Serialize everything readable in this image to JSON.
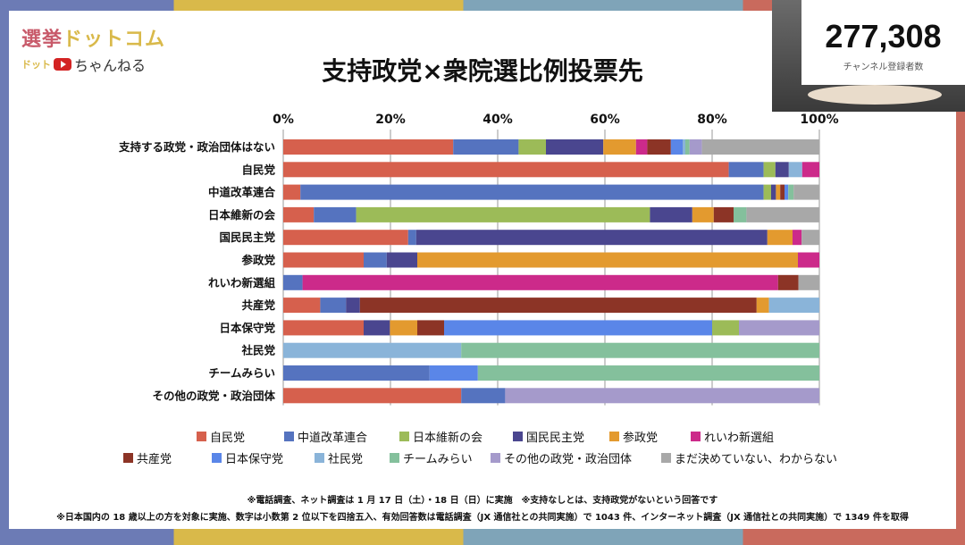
{
  "logo": {
    "line1a": "選挙",
    "line1b": "ドットコム",
    "line2a": "ドット",
    "line2b": "ちゃんねる"
  },
  "subscribers": {
    "count": "277,308",
    "label": "チャンネル登録者数"
  },
  "chart_data": {
    "type": "bar",
    "orientation": "horizontal-stacked-100",
    "title": "支持政党×衆院選比例投票先",
    "xlim": [
      0,
      100
    ],
    "xticks": [
      "0%",
      "20%",
      "40%",
      "60%",
      "80%",
      "100%"
    ],
    "legend_position": "bottom",
    "series": [
      {
        "name": "自民党",
        "color": "#d6604d"
      },
      {
        "name": "中道改革連合",
        "color": "#5573bf"
      },
      {
        "name": "日本維新の会",
        "color": "#9cbb58"
      },
      {
        "name": "国民民主党",
        "color": "#4a468f"
      },
      {
        "name": "参政党",
        "color": "#e39a2f"
      },
      {
        "name": "れいわ新選組",
        "color": "#cc2a8a"
      },
      {
        "name": "共産党",
        "color": "#8c3426"
      },
      {
        "name": "日本保守党",
        "color": "#5a86e8"
      },
      {
        "name": "社民党",
        "color": "#8ab4d9"
      },
      {
        "name": "チームみらい",
        "color": "#84c09c"
      },
      {
        "name": "その他の政党・政治団体",
        "color": "#a59acb"
      },
      {
        "name": "まだ決めていない、わからない",
        "color": "#a8a8a8"
      }
    ],
    "categories": [
      {
        "label": "支持する政党・政治団体はない",
        "segments": [
          [
            0,
            31.7
          ],
          [
            1,
            12.2
          ],
          [
            2,
            5.1
          ],
          [
            3,
            10.7
          ],
          [
            4,
            6.1
          ],
          [
            5,
            2.1
          ],
          [
            6,
            4.4
          ],
          [
            7,
            2.2
          ],
          [
            8,
            0.5
          ],
          [
            9,
            0.8
          ],
          [
            10,
            2.3
          ],
          [
            11,
            21.9
          ]
        ]
      },
      {
        "label": "自民党",
        "segments": [
          [
            0,
            83.1
          ],
          [
            1,
            6.5
          ],
          [
            2,
            2.2
          ],
          [
            3,
            2.5
          ],
          [
            8,
            2.5
          ],
          [
            5,
            3.2
          ]
        ]
      },
      {
        "label": "中道改革連合",
        "segments": [
          [
            0,
            3.2
          ],
          [
            1,
            86.4
          ],
          [
            2,
            1.4
          ],
          [
            3,
            0.9
          ],
          [
            4,
            0.8
          ],
          [
            6,
            0.8
          ],
          [
            7,
            0.7
          ],
          [
            9,
            1.0
          ],
          [
            11,
            4.8
          ]
        ]
      },
      {
        "label": "日本維新の会",
        "segments": [
          [
            0,
            5.7
          ],
          [
            1,
            7.9
          ],
          [
            2,
            54.8
          ],
          [
            3,
            7.9
          ],
          [
            4,
            4.0
          ],
          [
            6,
            3.7
          ],
          [
            9,
            2.4
          ],
          [
            11,
            13.6
          ]
        ]
      },
      {
        "label": "国民民主党",
        "segments": [
          [
            0,
            23.3
          ],
          [
            1,
            1.5
          ],
          [
            3,
            65.5
          ],
          [
            4,
            4.7
          ],
          [
            5,
            1.7
          ],
          [
            11,
            3.3
          ]
        ]
      },
      {
        "label": "参政党",
        "segments": [
          [
            0,
            15.0
          ],
          [
            1,
            4.3
          ],
          [
            3,
            5.7
          ],
          [
            4,
            71.0
          ],
          [
            5,
            4.0
          ]
        ]
      },
      {
        "label": "れいわ新選組",
        "segments": [
          [
            1,
            3.6
          ],
          [
            5,
            88.7
          ],
          [
            6,
            3.8
          ],
          [
            11,
            3.9
          ]
        ]
      },
      {
        "label": "共産党",
        "segments": [
          [
            0,
            6.9
          ],
          [
            1,
            4.8
          ],
          [
            3,
            2.6
          ],
          [
            6,
            74.0
          ],
          [
            4,
            2.3
          ],
          [
            8,
            9.4
          ]
        ]
      },
      {
        "label": "日本保守党",
        "segments": [
          [
            0,
            15.0
          ],
          [
            3,
            4.9
          ],
          [
            4,
            5.1
          ],
          [
            6,
            5.0
          ],
          [
            7,
            50.0
          ],
          [
            2,
            5.0
          ],
          [
            10,
            15.0
          ]
        ]
      },
      {
        "label": "社民党",
        "segments": [
          [
            8,
            33.2
          ],
          [
            9,
            66.8
          ]
        ]
      },
      {
        "label": "チームみらい",
        "segments": [
          [
            1,
            27.3
          ],
          [
            7,
            9.0
          ],
          [
            9,
            63.7
          ]
        ]
      },
      {
        "label": "その他の政党・政治団体",
        "segments": [
          [
            0,
            33.2
          ],
          [
            1,
            8.2
          ],
          [
            10,
            58.6
          ]
        ]
      }
    ]
  },
  "footnotes": [
    "※電話調査、ネット調査は 1 月 17 日（土）・18 日（日）に実施　※支持なしとは、支持政党がないという回答です",
    "※日本国内の 18 歳以上の方を対象に実施、数字は小数第 2 位以下を四捨五入、有効回答数は電話調査（JX 通信社との共同実施）で 1043 件、インターネット調査（JX 通信社との共同実施）で 1349 件を取得"
  ]
}
